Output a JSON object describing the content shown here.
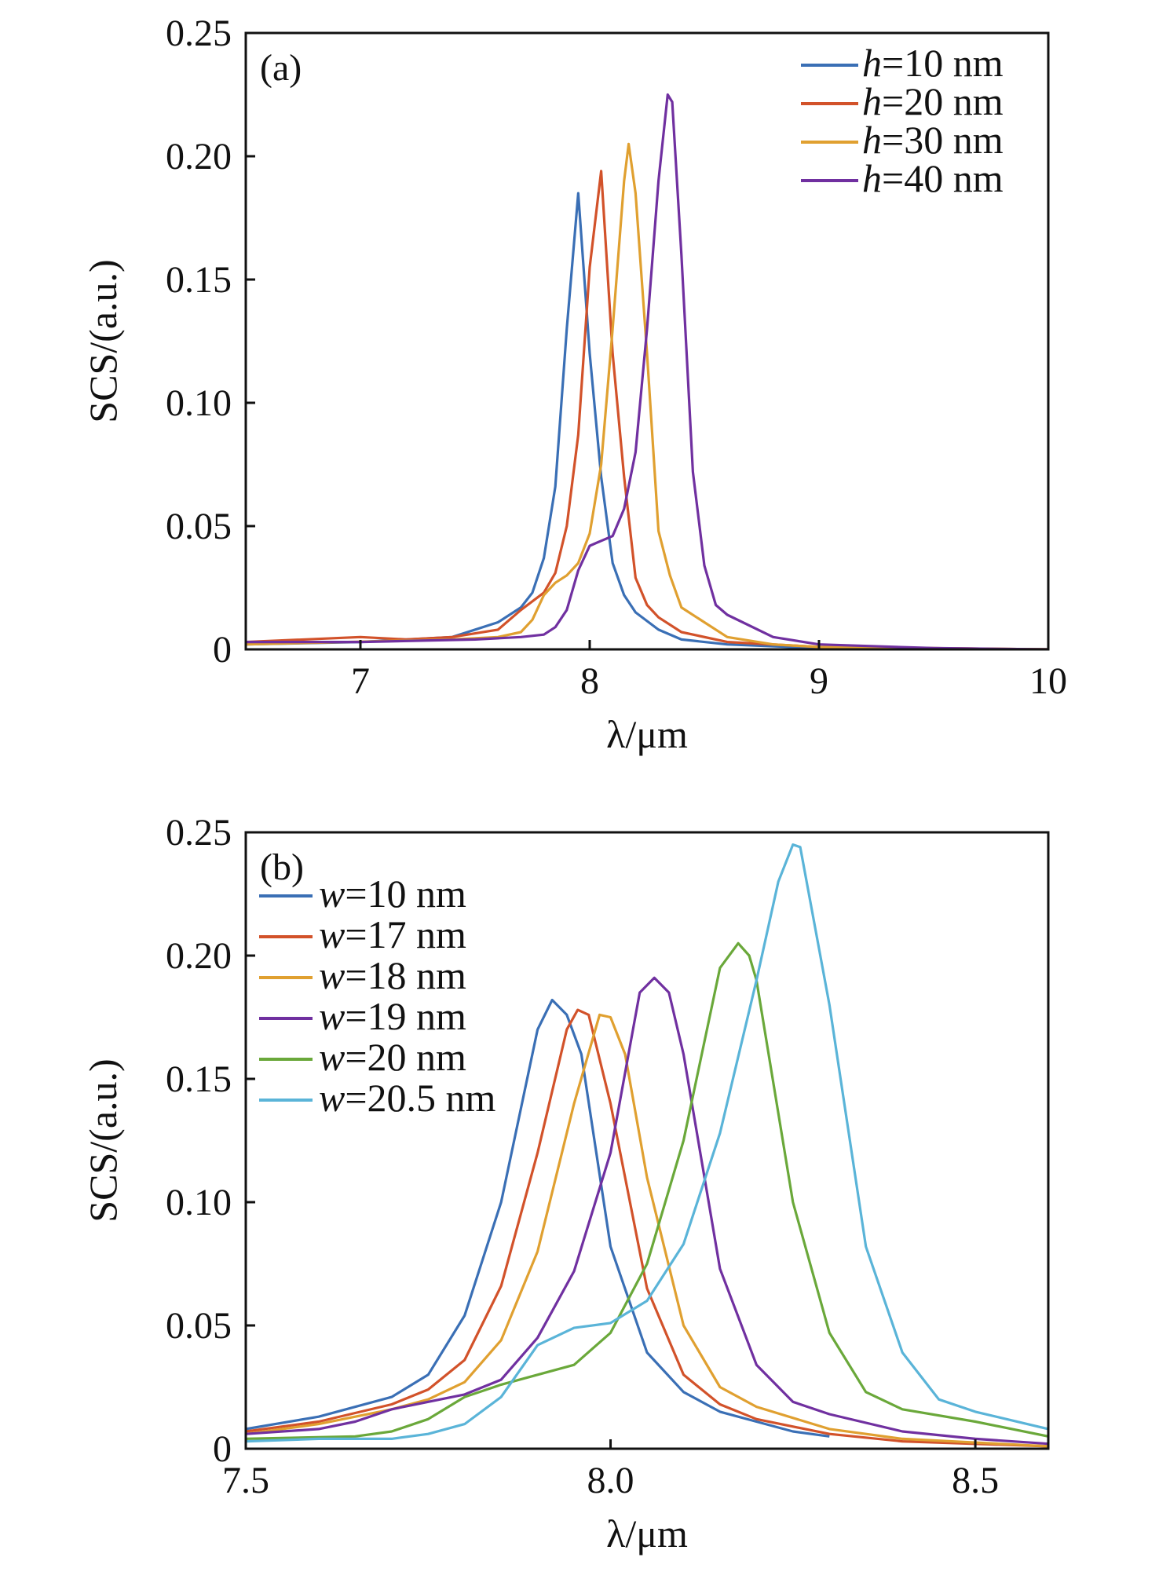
{
  "chart_data": [
    {
      "type": "line",
      "panel_label": "(a)",
      "xlabel": "λ/μm",
      "ylabel": "SCS/(a.u.)",
      "xlim": [
        6.5,
        10
      ],
      "ylim": [
        0,
        0.25
      ],
      "xticks": [
        7,
        8,
        9,
        10
      ],
      "xtick_labels": [
        "7",
        "8",
        "9",
        "10"
      ],
      "yticks": [
        0,
        0.05,
        0.1,
        0.15,
        0.2,
        0.25
      ],
      "ytick_labels": [
        "0",
        "0.05",
        "0.10",
        "0.15",
        "0.20",
        "0.25"
      ],
      "grid": false,
      "legend_placement": "top-right",
      "series": [
        {
          "name": "h=10 nm",
          "color": "#3a6fb5",
          "x": [
            6.5,
            7.0,
            7.4,
            7.6,
            7.7,
            7.75,
            7.8,
            7.85,
            7.9,
            7.95,
            8.0,
            8.05,
            8.1,
            8.15,
            8.2,
            8.3,
            8.4,
            8.6,
            9.0,
            10.0
          ],
          "y": [
            0.002,
            0.003,
            0.005,
            0.011,
            0.017,
            0.023,
            0.037,
            0.066,
            0.13,
            0.185,
            0.12,
            0.07,
            0.035,
            0.022,
            0.015,
            0.008,
            0.004,
            0.002,
            0.0005,
            0
          ]
        },
        {
          "name": "h=20 nm",
          "color": "#d2522a",
          "x": [
            6.5,
            7.0,
            7.2,
            7.4,
            7.6,
            7.7,
            7.8,
            7.85,
            7.9,
            7.95,
            8.0,
            8.05,
            8.1,
            8.15,
            8.2,
            8.25,
            8.3,
            8.4,
            8.6,
            9.0,
            10.0
          ],
          "y": [
            0.003,
            0.005,
            0.004,
            0.005,
            0.008,
            0.016,
            0.023,
            0.031,
            0.05,
            0.087,
            0.155,
            0.194,
            0.12,
            0.07,
            0.029,
            0.018,
            0.013,
            0.007,
            0.003,
            0.001,
            0
          ]
        },
        {
          "name": "h=30 nm",
          "color": "#e0a030",
          "x": [
            6.5,
            7.4,
            7.6,
            7.7,
            7.75,
            7.8,
            7.85,
            7.9,
            7.95,
            8.0,
            8.05,
            8.1,
            8.15,
            8.17,
            8.2,
            8.25,
            8.3,
            8.35,
            8.4,
            8.5,
            8.6,
            8.8,
            9.0,
            10.0
          ],
          "y": [
            0.002,
            0.004,
            0.005,
            0.007,
            0.012,
            0.022,
            0.027,
            0.03,
            0.035,
            0.047,
            0.075,
            0.13,
            0.19,
            0.205,
            0.185,
            0.12,
            0.048,
            0.03,
            0.017,
            0.011,
            0.005,
            0.002,
            0.001,
            0
          ]
        },
        {
          "name": "h=40 nm",
          "color": "#7030a0",
          "x": [
            6.5,
            7.0,
            7.5,
            7.7,
            7.8,
            7.85,
            7.9,
            7.95,
            8.0,
            8.05,
            8.1,
            8.15,
            8.2,
            8.25,
            8.3,
            8.34,
            8.36,
            8.4,
            8.45,
            8.5,
            8.55,
            8.6,
            8.8,
            9.0,
            9.5,
            10.0
          ],
          "y": [
            0.003,
            0.003,
            0.004,
            0.005,
            0.006,
            0.009,
            0.016,
            0.032,
            0.042,
            0.044,
            0.046,
            0.057,
            0.08,
            0.13,
            0.19,
            0.225,
            0.222,
            0.16,
            0.072,
            0.034,
            0.018,
            0.014,
            0.005,
            0.002,
            0.0005,
            0
          ]
        }
      ]
    },
    {
      "type": "line",
      "panel_label": "(b)",
      "xlabel": "λ/μm",
      "ylabel": "SCS/(a.u.)",
      "xlim": [
        7.5,
        8.6
      ],
      "ylim": [
        0,
        0.25
      ],
      "xticks": [
        7.5,
        8.0,
        8.5
      ],
      "xtick_labels": [
        "7.5",
        "8.0",
        "8.5"
      ],
      "yticks": [
        0,
        0.05,
        0.1,
        0.15,
        0.2,
        0.25
      ],
      "ytick_labels": [
        "0",
        "0.05",
        "0.10",
        "0.15",
        "0.20",
        "0.25"
      ],
      "grid": false,
      "legend_placement": "top-left",
      "series": [
        {
          "name": "w=10 nm",
          "color": "#3a6fb5",
          "x": [
            7.5,
            7.6,
            7.7,
            7.75,
            7.8,
            7.85,
            7.9,
            7.92,
            7.94,
            7.96,
            8.0,
            8.05,
            8.1,
            8.15,
            8.2,
            8.25,
            8.3
          ],
          "y": [
            0.008,
            0.013,
            0.021,
            0.03,
            0.054,
            0.1,
            0.17,
            0.182,
            0.176,
            0.16,
            0.082,
            0.039,
            0.023,
            0.015,
            0.011,
            0.007,
            0.005
          ]
        },
        {
          "name": "w=17 nm",
          "color": "#d2522a",
          "x": [
            7.5,
            7.6,
            7.7,
            7.75,
            7.8,
            7.85,
            7.9,
            7.94,
            7.955,
            7.97,
            8.0,
            8.05,
            8.1,
            8.15,
            8.2,
            8.3,
            8.4,
            8.6
          ],
          "y": [
            0.007,
            0.011,
            0.018,
            0.024,
            0.036,
            0.066,
            0.12,
            0.17,
            0.178,
            0.176,
            0.14,
            0.065,
            0.03,
            0.018,
            0.012,
            0.006,
            0.003,
            0.001
          ]
        },
        {
          "name": "w=18 nm",
          "color": "#e0a030",
          "x": [
            7.5,
            7.6,
            7.7,
            7.75,
            7.8,
            7.85,
            7.9,
            7.95,
            7.985,
            8.0,
            8.02,
            8.05,
            8.1,
            8.15,
            8.2,
            8.3,
            8.4,
            8.6
          ],
          "y": [
            0.006,
            0.01,
            0.016,
            0.02,
            0.027,
            0.044,
            0.08,
            0.14,
            0.176,
            0.175,
            0.16,
            0.11,
            0.05,
            0.025,
            0.017,
            0.008,
            0.004,
            0.001
          ]
        },
        {
          "name": "w=19 nm",
          "color": "#7030a0",
          "x": [
            7.5,
            7.6,
            7.65,
            7.7,
            7.8,
            7.85,
            7.9,
            7.95,
            8.0,
            8.04,
            8.06,
            8.08,
            8.1,
            8.15,
            8.2,
            8.25,
            8.3,
            8.4,
            8.5,
            8.6
          ],
          "y": [
            0.006,
            0.008,
            0.011,
            0.016,
            0.022,
            0.028,
            0.045,
            0.072,
            0.12,
            0.185,
            0.191,
            0.185,
            0.16,
            0.073,
            0.034,
            0.019,
            0.014,
            0.007,
            0.004,
            0.002
          ]
        },
        {
          "name": "w=20 nm",
          "color": "#6aa83a",
          "x": [
            7.5,
            7.65,
            7.7,
            7.75,
            7.8,
            7.85,
            7.9,
            7.95,
            8.0,
            8.05,
            8.1,
            8.15,
            8.175,
            8.19,
            8.2,
            8.25,
            8.3,
            8.35,
            8.4,
            8.5,
            8.6
          ],
          "y": [
            0.004,
            0.005,
            0.007,
            0.012,
            0.021,
            0.026,
            0.03,
            0.034,
            0.047,
            0.075,
            0.125,
            0.195,
            0.205,
            0.2,
            0.19,
            0.1,
            0.047,
            0.023,
            0.016,
            0.011,
            0.005
          ]
        },
        {
          "name": "w=20.5 nm",
          "color": "#5ab4d8",
          "x": [
            7.5,
            7.6,
            7.7,
            7.75,
            7.8,
            7.85,
            7.9,
            7.95,
            8.0,
            8.05,
            8.1,
            8.15,
            8.2,
            8.23,
            8.25,
            8.26,
            8.3,
            8.35,
            8.4,
            8.45,
            8.5,
            8.6
          ],
          "y": [
            0.003,
            0.004,
            0.004,
            0.006,
            0.01,
            0.021,
            0.042,
            0.049,
            0.051,
            0.06,
            0.083,
            0.128,
            0.19,
            0.23,
            0.245,
            0.244,
            0.18,
            0.082,
            0.039,
            0.02,
            0.015,
            0.008
          ]
        }
      ]
    }
  ]
}
